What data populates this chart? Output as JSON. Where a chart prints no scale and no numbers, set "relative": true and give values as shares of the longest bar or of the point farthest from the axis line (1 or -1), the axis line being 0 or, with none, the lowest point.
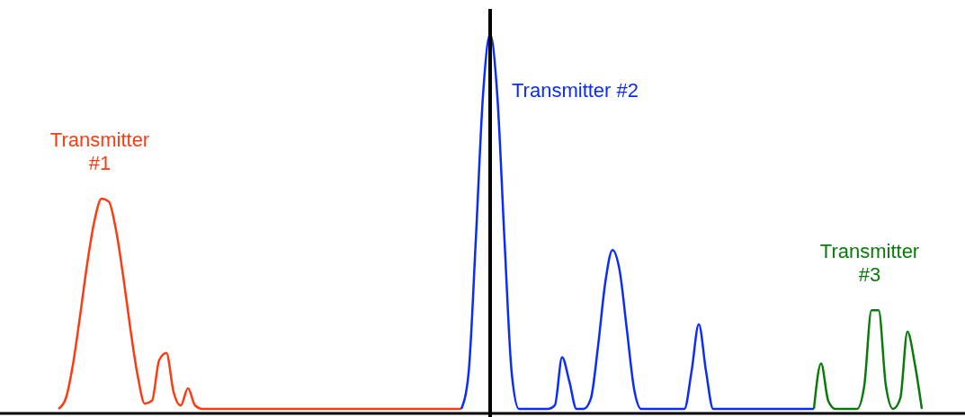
{
  "chart_data": {
    "type": "line",
    "relative": true,
    "categories": [
      null,
      null,
      null,
      null,
      null,
      null,
      null,
      null,
      null,
      null,
      null,
      null,
      null,
      null,
      null,
      null,
      null,
      null,
      null,
      null,
      null,
      null,
      null,
      null,
      null,
      null,
      null,
      null,
      null,
      null,
      null,
      null,
      null,
      null,
      null,
      null,
      null,
      null,
      null,
      null,
      null,
      null,
      null,
      null,
      null,
      null,
      null,
      null,
      null,
      null,
      null,
      null,
      null,
      null,
      null,
      null,
      null,
      null,
      null,
      null,
      null,
      null,
      null,
      null,
      null,
      null,
      null,
      null,
      null,
      null,
      null,
      null,
      null,
      null,
      null,
      null,
      null,
      null,
      null,
      null,
      null,
      null,
      null,
      null,
      null,
      null,
      null,
      null,
      null,
      null,
      null,
      null,
      null,
      null,
      null,
      null,
      null,
      null,
      null,
      null,
      null,
      null,
      null,
      null,
      null,
      null,
      null,
      null,
      null,
      null,
      null,
      null,
      null,
      null,
      null,
      null,
      null,
      null,
      null,
      null,
      null
    ],
    "series": [
      {
        "name": "Transmitter #1",
        "color": "#ff3a10",
        "values": [
          0,
          0.027,
          0.117,
          0.248,
          0.388,
          0.502,
          0.561,
          0.553,
          0.477,
          0.354,
          0.213,
          0.09,
          0.014,
          0.022,
          0.13,
          0.149,
          0.045,
          0.009,
          0.055,
          0.009,
          0,
          0,
          0,
          0,
          0,
          0,
          0,
          0,
          0,
          0,
          0,
          0,
          0,
          0,
          0,
          0,
          0,
          0,
          0,
          0,
          0,
          0,
          0,
          0,
          0,
          0,
          0,
          0,
          0,
          0,
          0,
          0,
          0,
          0,
          0,
          0,
          0,
          null,
          null,
          null,
          null,
          null,
          null,
          null,
          null,
          null,
          null,
          null,
          null,
          null,
          null,
          null,
          null,
          null,
          null,
          null,
          null,
          null,
          null,
          null,
          null,
          null,
          null,
          null,
          null,
          null,
          null,
          null,
          null,
          null,
          null,
          null,
          null,
          null,
          null,
          null,
          null,
          null,
          null,
          null,
          null,
          null,
          null,
          null,
          null,
          null,
          null,
          null,
          null,
          null,
          null,
          null,
          null,
          null,
          null,
          null,
          null,
          null,
          null,
          null,
          null
        ]
      },
      {
        "name": "Transmitter #2",
        "color": "#0a2cff",
        "values": [
          null,
          null,
          null,
          null,
          null,
          null,
          null,
          null,
          null,
          null,
          null,
          null,
          null,
          null,
          null,
          null,
          null,
          null,
          null,
          null,
          null,
          null,
          null,
          null,
          null,
          null,
          null,
          null,
          null,
          null,
          null,
          null,
          null,
          null,
          null,
          null,
          null,
          null,
          null,
          null,
          null,
          null,
          null,
          null,
          null,
          null,
          null,
          null,
          null,
          null,
          null,
          null,
          null,
          null,
          null,
          null,
          0,
          0.095,
          0.448,
          0.835,
          1,
          0.835,
          0.448,
          0.095,
          0,
          0,
          0,
          0,
          0,
          0.01,
          0.138,
          0.074,
          0,
          0,
          0.028,
          0.168,
          0.337,
          0.424,
          0.369,
          0.212,
          0.054,
          0,
          0,
          0,
          0,
          0,
          0,
          0,
          0.101,
          0.226,
          0.101,
          0,
          0,
          0,
          0,
          0,
          0,
          0,
          0,
          0,
          0,
          0,
          0,
          0,
          0,
          0,
          null,
          null,
          null,
          null,
          null,
          null,
          null,
          null,
          null,
          null,
          null,
          null,
          null,
          null,
          null
        ]
      },
      {
        "name": "Transmitter #3",
        "color": "#0a7a0a",
        "values": [
          null,
          null,
          null,
          null,
          null,
          null,
          null,
          null,
          null,
          null,
          null,
          null,
          null,
          null,
          null,
          null,
          null,
          null,
          null,
          null,
          null,
          null,
          null,
          null,
          null,
          null,
          null,
          null,
          null,
          null,
          null,
          null,
          null,
          null,
          null,
          null,
          null,
          null,
          null,
          null,
          null,
          null,
          null,
          null,
          null,
          null,
          null,
          null,
          null,
          null,
          null,
          null,
          null,
          null,
          null,
          null,
          null,
          null,
          null,
          null,
          null,
          null,
          null,
          null,
          null,
          null,
          null,
          null,
          null,
          null,
          null,
          null,
          null,
          null,
          null,
          null,
          null,
          null,
          null,
          null,
          null,
          null,
          null,
          null,
          null,
          null,
          null,
          null,
          null,
          null,
          null,
          null,
          null,
          null,
          null,
          null,
          null,
          null,
          null,
          null,
          null,
          null,
          null,
          null,
          null,
          0,
          0.121,
          0.021,
          0,
          0,
          0,
          0,
          0.062,
          0.263,
          0.263,
          0.062,
          0,
          0.028,
          0.206,
          0.123,
          0
        ]
      }
    ]
  }
}
